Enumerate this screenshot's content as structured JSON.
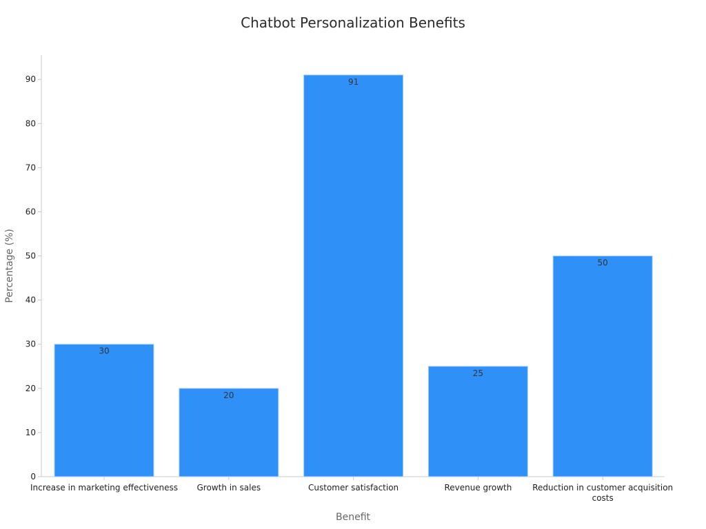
{
  "chart_data": {
    "type": "bar",
    "title": "Chatbot Personalization Benefits",
    "xlabel": "Benefit",
    "ylabel": "Percentage (%)",
    "categories": [
      [
        "Increase in marketing effectiveness"
      ],
      [
        "Growth in sales"
      ],
      [
        "Customer satisfaction"
      ],
      [
        "Revenue growth"
      ],
      [
        "Reduction in customer acquisition",
        "costs"
      ]
    ],
    "values": [
      30,
      20,
      91,
      25,
      50
    ],
    "data_labels": [
      "30",
      "20",
      "91",
      "25",
      "50"
    ],
    "ylim": [
      0,
      95.5
    ],
    "yticks": [
      0,
      10,
      20,
      30,
      40,
      50,
      60,
      70,
      80,
      90
    ],
    "grid": false,
    "legend": "none",
    "colors": {
      "bar": "#2f91f8",
      "bar_edge": "#a9d0ff",
      "axis": "#c8c8c8",
      "tick_text": "#1f1f1f",
      "label_text": "#666666",
      "title_text": "#2b2b2b",
      "data_label_text": "#333333"
    }
  }
}
